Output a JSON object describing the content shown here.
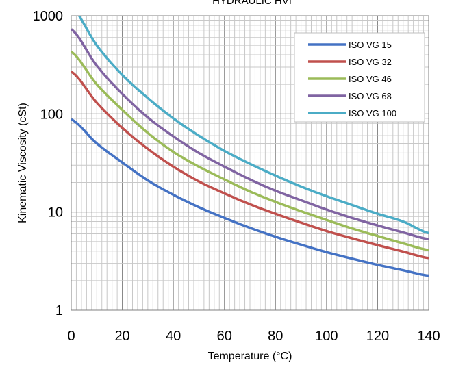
{
  "chart_data": {
    "type": "line",
    "title": "HYDRAULIC HVI",
    "xlabel": "Temperature (°C)",
    "ylabel": "Kinematic Viscosity  (cSt)",
    "xlim": [
      0,
      140
    ],
    "ylim": [
      1,
      1000
    ],
    "yscale": "log",
    "x_ticks": [
      "0",
      "20",
      "40",
      "60",
      "80",
      "100",
      "120",
      "140"
    ],
    "y_ticks": [
      "1",
      "10",
      "100",
      "1000"
    ],
    "grid": true,
    "legend_position": "top-right",
    "x": [
      0,
      10,
      20,
      30,
      40,
      50,
      60,
      70,
      80,
      90,
      100,
      110,
      120,
      130,
      140
    ],
    "series": [
      {
        "name": "ISO VG 15",
        "color": "#4472C4",
        "values": [
          88,
          50,
          32,
          21,
          15,
          11.2,
          8.7,
          6.9,
          5.6,
          4.65,
          3.9,
          3.35,
          2.9,
          2.55,
          2.25
        ]
      },
      {
        "name": "ISO VG 32",
        "color": "#C0504D",
        "values": [
          270,
          130,
          72,
          44,
          29,
          20.5,
          15.5,
          12,
          9.6,
          7.8,
          6.4,
          5.4,
          4.6,
          3.95,
          3.4
        ]
      },
      {
        "name": "ISO VG 46",
        "color": "#9BBB59",
        "values": [
          430,
          200,
          110,
          64,
          41,
          29,
          21.5,
          16.2,
          12.7,
          10.2,
          8.3,
          6.8,
          5.7,
          4.8,
          4.1
        ]
      },
      {
        "name": "ISO VG 68",
        "color": "#8064A2",
        "values": [
          730,
          310,
          160,
          92,
          59,
          40,
          29,
          21.5,
          16.5,
          13.2,
          10.6,
          8.7,
          7.3,
          6.2,
          5.3
        ]
      },
      {
        "name": "ISO VG 100",
        "color": "#4BACC6",
        "values": [
          1250,
          500,
          250,
          145,
          90,
          60,
          42,
          31,
          23.5,
          18.2,
          14.5,
          11.8,
          9.6,
          8,
          6.1
        ]
      }
    ]
  }
}
